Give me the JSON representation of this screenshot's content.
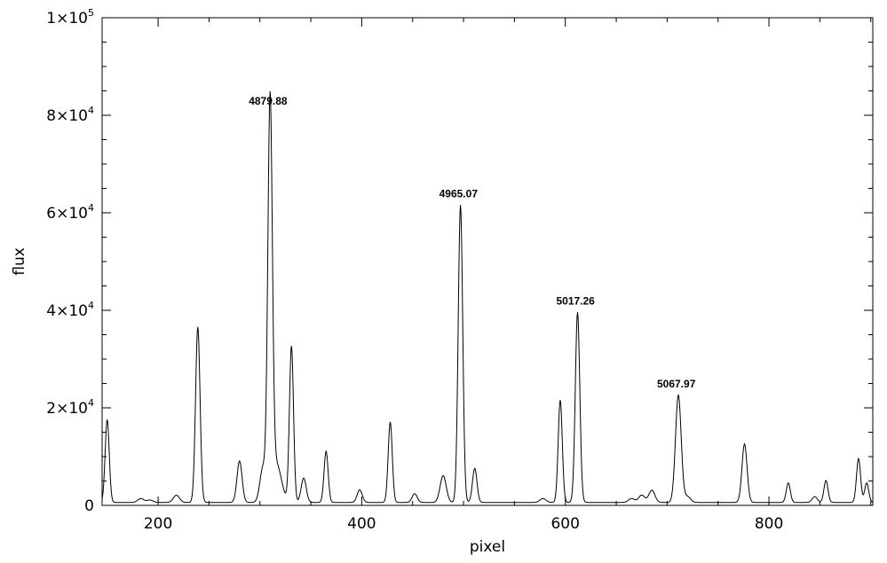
{
  "chart_data": {
    "type": "line",
    "title": "",
    "xlabel": "pixel",
    "ylabel": "flux",
    "xlim": [
      145,
      902
    ],
    "ylim": [
      0,
      100000
    ],
    "x_ticks": [
      {
        "value": 200,
        "label": "200"
      },
      {
        "value": 400,
        "label": "400"
      },
      {
        "value": 600,
        "label": "600"
      },
      {
        "value": 800,
        "label": "800"
      }
    ],
    "y_ticks": [
      {
        "value": 0,
        "mant": "0",
        "exp": ""
      },
      {
        "value": 20000,
        "mant": "2×10",
        "exp": "4"
      },
      {
        "value": 40000,
        "mant": "4×10",
        "exp": "4"
      },
      {
        "value": 60000,
        "mant": "6×10",
        "exp": "4"
      },
      {
        "value": 80000,
        "mant": "8×10",
        "exp": "4"
      },
      {
        "value": 100000,
        "mant": "1×10",
        "exp": "5"
      }
    ],
    "grid": false,
    "baseline": 600,
    "peaks": [
      [
        150,
        17000,
        2.0
      ],
      [
        183,
        800,
        3
      ],
      [
        192,
        500,
        3
      ],
      [
        218,
        1500,
        3
      ],
      [
        239,
        36000,
        2.2
      ],
      [
        280,
        8500,
        2.5
      ],
      [
        303,
        7000,
        3
      ],
      [
        310,
        80000,
        2.2
      ],
      [
        316,
        8000,
        5
      ],
      [
        331,
        32000,
        2.0
      ],
      [
        343,
        5000,
        2.5
      ],
      [
        365,
        10500,
        2.0
      ],
      [
        398,
        2600,
        2.5
      ],
      [
        428,
        16500,
        2.0
      ],
      [
        452,
        1800,
        2.5
      ],
      [
        480,
        5500,
        3.0
      ],
      [
        497,
        61000,
        2.2
      ],
      [
        511,
        7000,
        2.2
      ],
      [
        578,
        800,
        3
      ],
      [
        595,
        21000,
        2.0
      ],
      [
        612,
        39000,
        2.2
      ],
      [
        665,
        800,
        3
      ],
      [
        675,
        1500,
        3
      ],
      [
        685,
        2500,
        3
      ],
      [
        711,
        22000,
        2.8
      ],
      [
        720,
        1200,
        3
      ],
      [
        776,
        12000,
        2.5
      ],
      [
        819,
        4000,
        2.0
      ],
      [
        845,
        1200,
        2.5
      ],
      [
        856,
        4500,
        2.0
      ],
      [
        888,
        9000,
        2.0
      ],
      [
        896,
        4000,
        2.0
      ]
    ],
    "annotations": [
      {
        "x": 310,
        "y": 80000,
        "text": "4879.88"
      },
      {
        "x": 497,
        "y": 61000,
        "text": "4965.07"
      },
      {
        "x": 612,
        "y": 39000,
        "text": "5017.26"
      },
      {
        "x": 711,
        "y": 22000,
        "text": "5067.97"
      }
    ]
  }
}
